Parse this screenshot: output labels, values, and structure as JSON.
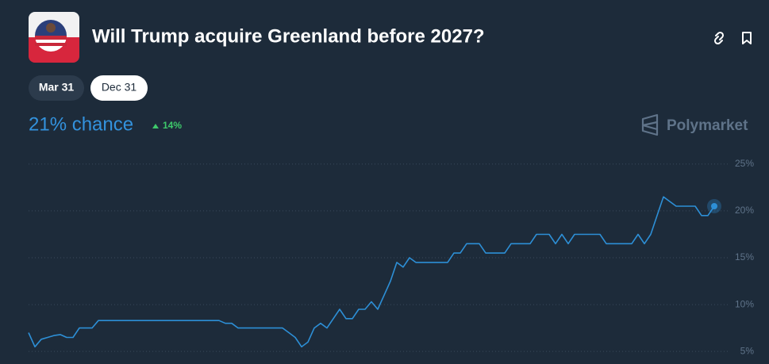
{
  "header": {
    "title": "Will Trump acquire Greenland before 2027?"
  },
  "tabs": [
    "Mar 31",
    "Dec 31"
  ],
  "chance": "21% chance",
  "change": "14%",
  "brand": "Polymarket",
  "chart_data": {
    "type": "line",
    "color": "#2d8fd6",
    "grid": true,
    "ylim": [
      4,
      26
    ],
    "yticks": [
      {
        "value": 5,
        "label": "5%"
      },
      {
        "value": 10,
        "label": "10%"
      },
      {
        "value": 15,
        "label": "15%"
      },
      {
        "value": 20,
        "label": "20%"
      },
      {
        "value": 25,
        "label": "25%"
      }
    ],
    "values": [
      7,
      5.5,
      6.3,
      6.5,
      6.7,
      6.8,
      6.5,
      6.5,
      7.5,
      7.5,
      7.5,
      8.3,
      8.3,
      8.3,
      8.3,
      8.3,
      8.3,
      8.3,
      8.3,
      8.3,
      8.3,
      8.3,
      8.3,
      8.3,
      8.3,
      8.3,
      8.3,
      8.3,
      8.3,
      8.3,
      8.3,
      8,
      8,
      7.5,
      7.5,
      7.5,
      7.5,
      7.5,
      7.5,
      7.5,
      7.5,
      7,
      6.5,
      5.5,
      6,
      7.5,
      8,
      7.5,
      8.5,
      9.5,
      8.5,
      8.5,
      9.5,
      9.5,
      10.3,
      9.5,
      11,
      12.5,
      14.5,
      14,
      15,
      14.5,
      14.5,
      14.5,
      14.5,
      14.5,
      14.5,
      15.5,
      15.5,
      16.5,
      16.5,
      16.5,
      15.5,
      15.5,
      15.5,
      15.5,
      16.5,
      16.5,
      16.5,
      16.5,
      17.5,
      17.5,
      17.5,
      16.5,
      17.5,
      16.5,
      17.5,
      17.5,
      17.5,
      17.5,
      17.5,
      16.5,
      16.5,
      16.5,
      16.5,
      16.5,
      17.5,
      16.5,
      17.5,
      19.5,
      21.5,
      21,
      20.5,
      20.5,
      20.5,
      20.5,
      19.5,
      19.5,
      20.5
    ]
  }
}
